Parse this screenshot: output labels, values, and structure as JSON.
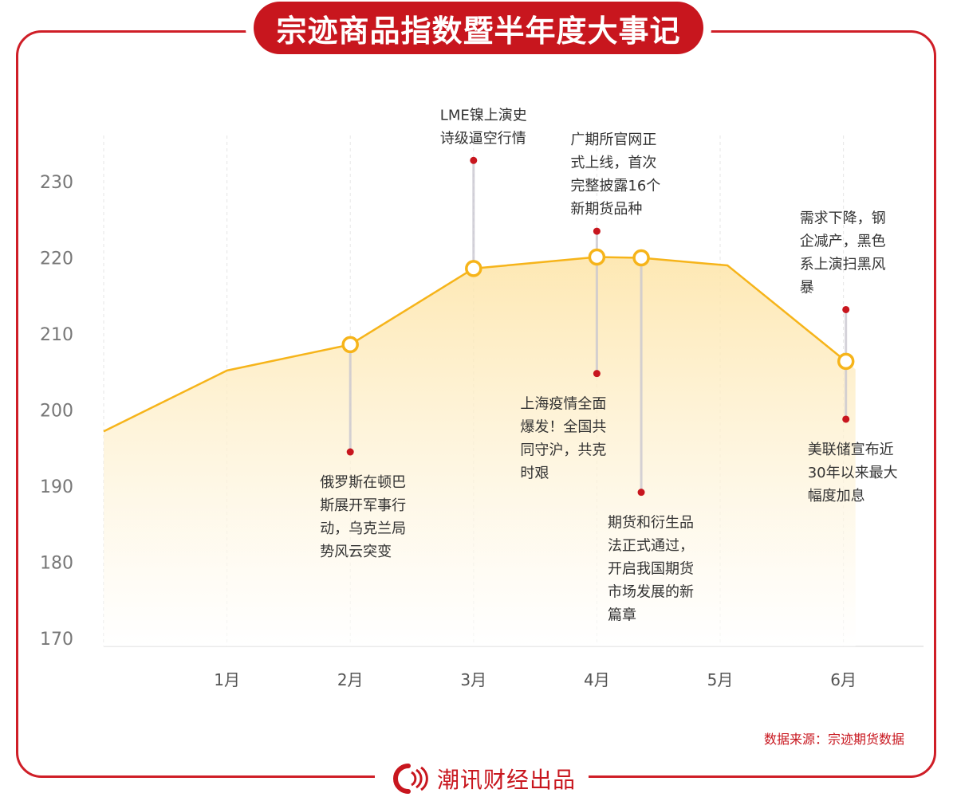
{
  "title": "宗迹商品指数暨半年度大事记",
  "source": "数据来源：宗迹期货数据",
  "footer": "潮讯财经出品",
  "colors": {
    "brand_red": "#c8161e",
    "line": "#f6b41a",
    "area_top": "#fde9b6",
    "dot_red": "#c8161e",
    "connector": "#c9c7cf"
  },
  "chart_data": {
    "type": "area",
    "title": "宗迹商品指数暨半年度大事记",
    "xlabel": "",
    "ylabel": "",
    "ylim": [
      170,
      230
    ],
    "xlim": [
      0,
      6.3
    ],
    "grid": "vertical dashed",
    "x_ticks": [
      {
        "x": 1,
        "label": "1月"
      },
      {
        "x": 2,
        "label": "2月"
      },
      {
        "x": 3,
        "label": "3月"
      },
      {
        "x": 4,
        "label": "4月"
      },
      {
        "x": 5,
        "label": "5月"
      },
      {
        "x": 6,
        "label": "6月"
      }
    ],
    "y_ticks": [
      170,
      180,
      190,
      200,
      210,
      220,
      230
    ],
    "series": [
      {
        "points": [
          {
            "x": 0,
            "y": 197.2
          },
          {
            "x": 1,
            "y": 205.2
          },
          {
            "x": 2,
            "y": 208.6
          },
          {
            "x": 3,
            "y": 218.6
          },
          {
            "x": 4,
            "y": 220.1
          },
          {
            "x": 4.36,
            "y": 220.0
          },
          {
            "x": 5.06,
            "y": 219.0
          },
          {
            "x": 6.02,
            "y": 206.4
          }
        ]
      }
    ],
    "events": [
      {
        "x": 2,
        "y": 208.6,
        "marker_y": 194.5,
        "text": [
          "俄罗斯在顿巴",
          "斯展开军事行",
          "动，乌克兰局",
          "势风云突变"
        ]
      },
      {
        "x": 3,
        "y": 218.6,
        "marker_y": 232.8,
        "text": [
          "LME镍上演史",
          "诗级逼空行情"
        ]
      },
      {
        "x": 4,
        "y": 220.1,
        "marker_y": 223.5,
        "text": [
          "广期所官网正",
          "式上线，首次",
          "完整披露16个",
          "新期货品种"
        ]
      },
      {
        "x": 4,
        "y": 220.1,
        "marker_y": 204.8,
        "text": [
          "上海疫情全面",
          "爆发！全国共",
          "同守沪，共克",
          "时艰"
        ]
      },
      {
        "x": 4.36,
        "y": 220.0,
        "marker_y": 189.2,
        "text": [
          "期货和衍生品",
          "法正式通过，",
          "开启我国期货",
          "市场发展的新",
          "篇章"
        ]
      },
      {
        "x": 6.02,
        "y": 206.4,
        "marker_y": 213.2,
        "text": [
          "需求下降，钢",
          "企减产，黑色",
          "系上演扫黑风",
          "暴"
        ]
      },
      {
        "x": 6.02,
        "y": 206.4,
        "marker_y": 198.8,
        "text": [
          "美联储宣布近",
          "30年以来最大",
          "幅度加息"
        ]
      }
    ],
    "highlighted_points": [
      2,
      3,
      4,
      5,
      7
    ]
  }
}
